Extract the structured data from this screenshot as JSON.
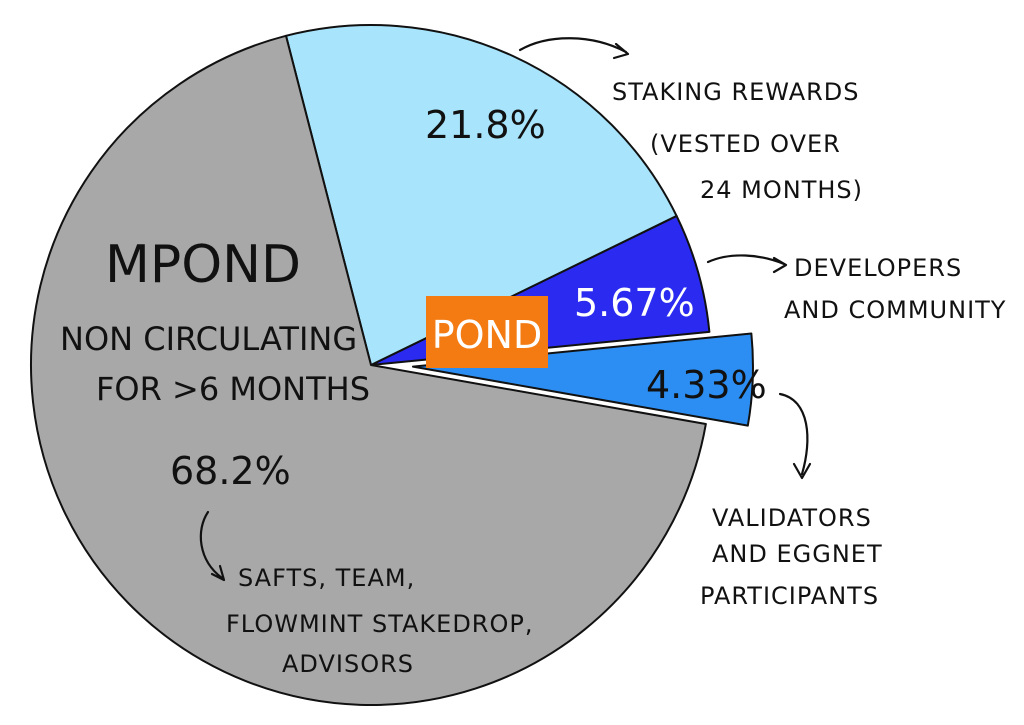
{
  "chart_data": {
    "type": "pie",
    "title": "",
    "slices": [
      {
        "key": "mpond",
        "value": 68.2,
        "label": "68.2%",
        "color": "#a8a8a8",
        "heading": "MPOND",
        "subheading": [
          "NON CIRCULATING",
          "FOR >6 MONTHS"
        ],
        "annotation": [
          "SAFTS, TEAM,",
          "FLOWMINT STAKEDROP,",
          "ADVISORS"
        ]
      },
      {
        "key": "staking",
        "value": 21.8,
        "label": "21.8%",
        "color": "#a8e4fb",
        "annotation": [
          "STAKING REWARDS",
          "(VESTED OVER",
          "24 MONTHS)"
        ]
      },
      {
        "key": "developers",
        "value": 5.67,
        "label": "5.67%",
        "color": "#2a2af0",
        "annotation": [
          "DEVELOPERS",
          "AND COMMUNITY"
        ]
      },
      {
        "key": "validators",
        "value": 4.33,
        "label": "4.33%",
        "color": "#2c8ef2",
        "exploded": true,
        "annotation": [
          "VALIDATORS",
          "AND EGGNET",
          "PARTICIPANTS"
        ]
      }
    ],
    "group_badge": {
      "text": "POND",
      "color": "#f47b12"
    }
  }
}
